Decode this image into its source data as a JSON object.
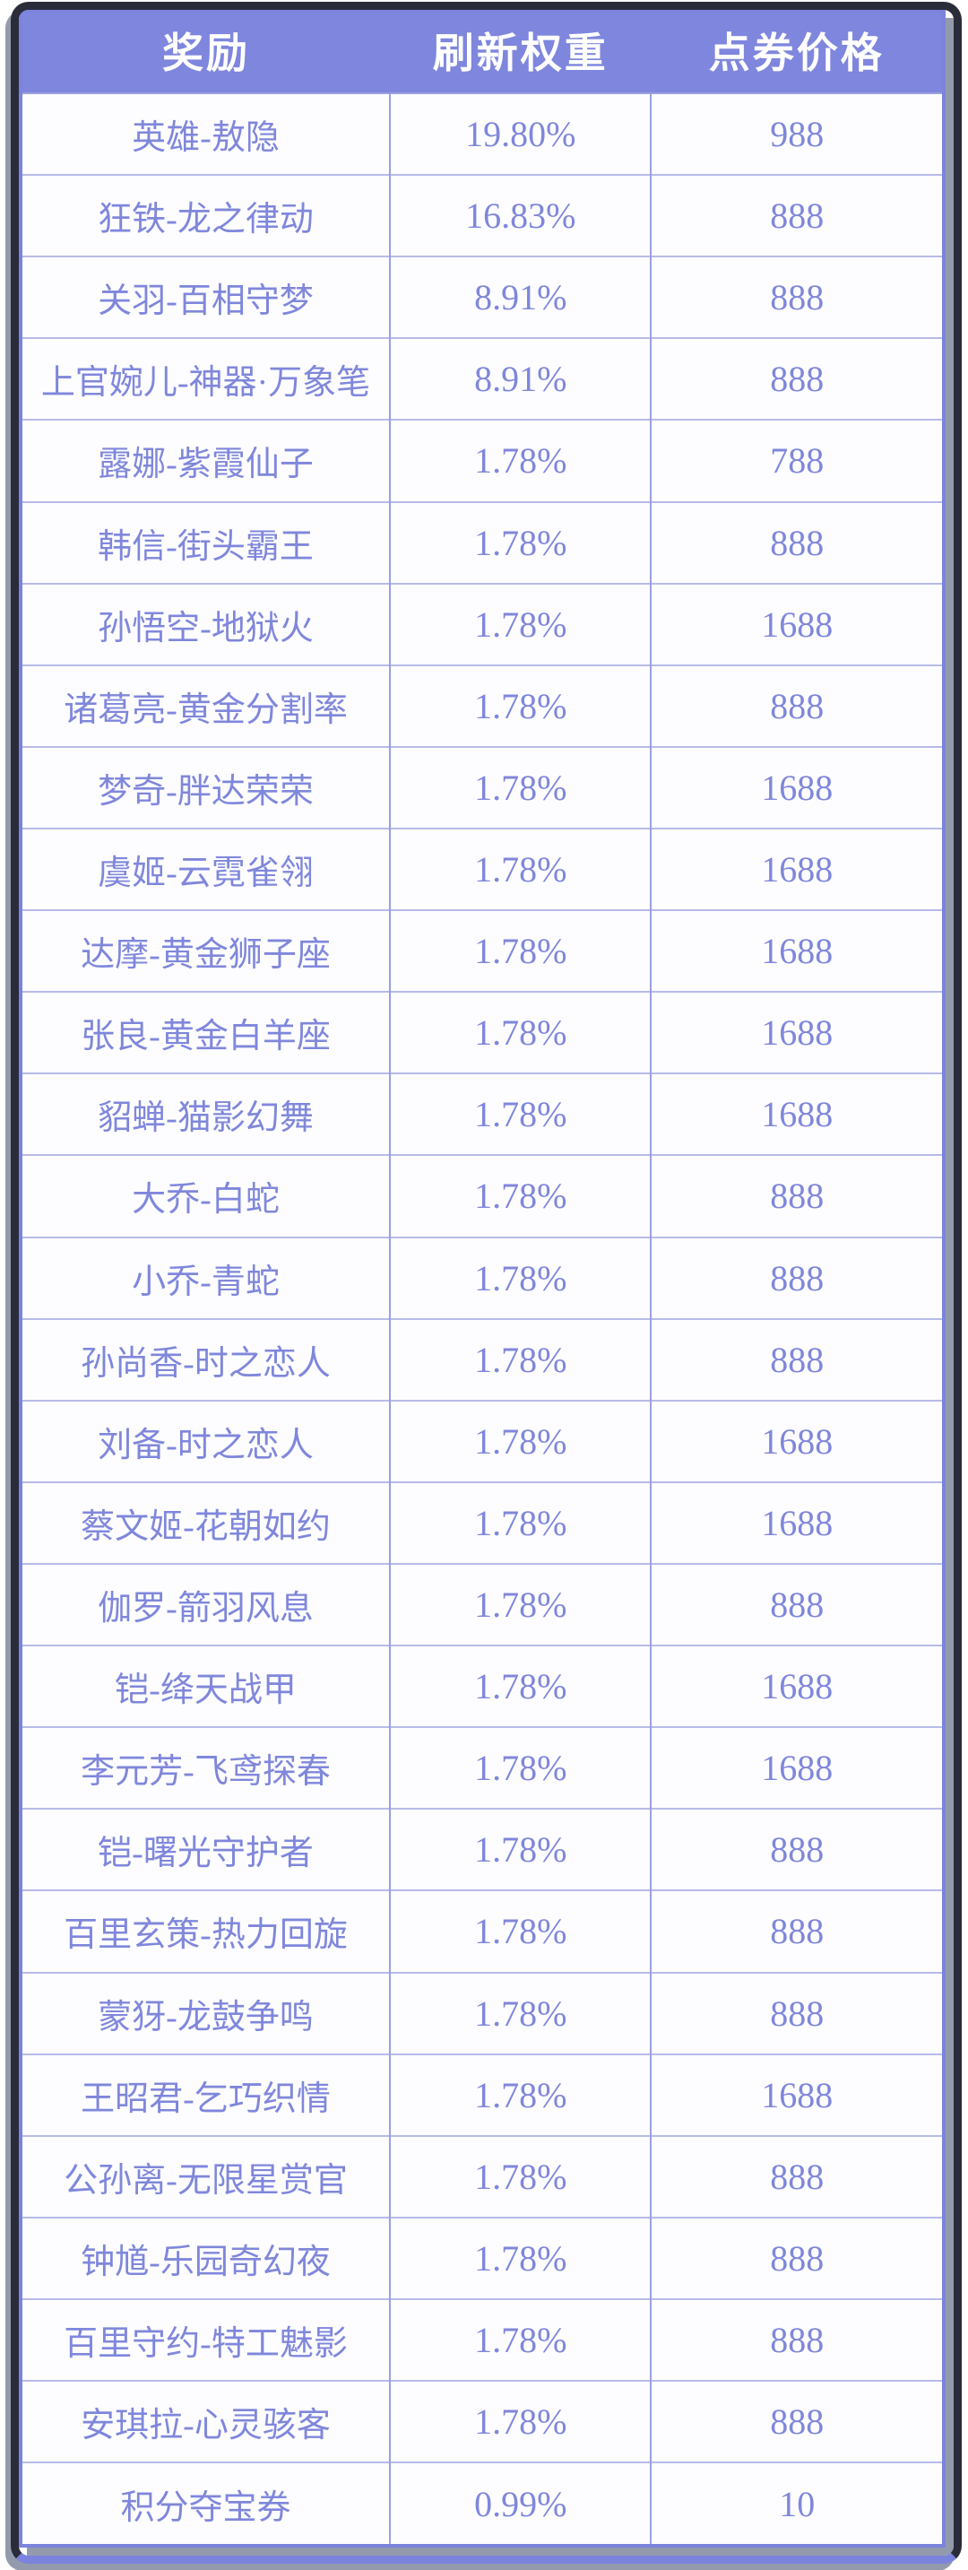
{
  "chart_data": {
    "type": "table",
    "columns": [
      "奖励",
      "刷新权重",
      "点券价格"
    ],
    "rows": [
      [
        "英雄-敖隐",
        "19.80%",
        "988"
      ],
      [
        "狂铁-龙之律动",
        "16.83%",
        "888"
      ],
      [
        "关羽-百相守梦",
        "8.91%",
        "888"
      ],
      [
        "上官婉儿-神器·万象笔",
        "8.91%",
        "888"
      ],
      [
        "露娜-紫霞仙子",
        "1.78%",
        "788"
      ],
      [
        "韩信-街头霸王",
        "1.78%",
        "888"
      ],
      [
        "孙悟空-地狱火",
        "1.78%",
        "1688"
      ],
      [
        "诸葛亮-黄金分割率",
        "1.78%",
        "888"
      ],
      [
        "梦奇-胖达荣荣",
        "1.78%",
        "1688"
      ],
      [
        "虞姬-云霓雀翎",
        "1.78%",
        "1688"
      ],
      [
        "达摩-黄金狮子座",
        "1.78%",
        "1688"
      ],
      [
        "张良-黄金白羊座",
        "1.78%",
        "1688"
      ],
      [
        "貂蝉-猫影幻舞",
        "1.78%",
        "1688"
      ],
      [
        "大乔-白蛇",
        "1.78%",
        "888"
      ],
      [
        "小乔-青蛇",
        "1.78%",
        "888"
      ],
      [
        "孙尚香-时之恋人",
        "1.78%",
        "888"
      ],
      [
        "刘备-时之恋人",
        "1.78%",
        "1688"
      ],
      [
        "蔡文姬-花朝如约",
        "1.78%",
        "1688"
      ],
      [
        "伽罗-箭羽风息",
        "1.78%",
        "888"
      ],
      [
        "铠-绛天战甲",
        "1.78%",
        "1688"
      ],
      [
        "李元芳-飞鸢探春",
        "1.78%",
        "1688"
      ],
      [
        "铠-曙光守护者",
        "1.78%",
        "888"
      ],
      [
        "百里玄策-热力回旋",
        "1.78%",
        "888"
      ],
      [
        "蒙犽-龙鼓争鸣",
        "1.78%",
        "888"
      ],
      [
        "王昭君-乞巧织情",
        "1.78%",
        "1688"
      ],
      [
        "公孙离-无限星赏官",
        "1.78%",
        "888"
      ],
      [
        "钟馗-乐园奇幻夜",
        "1.78%",
        "888"
      ],
      [
        "百里守约-特工魅影",
        "1.78%",
        "888"
      ],
      [
        "安琪拉-心灵骇客",
        "1.78%",
        "888"
      ],
      [
        "积分夺宝券",
        "0.99%",
        "10"
      ]
    ]
  },
  "colors": {
    "background": "#ffffff",
    "header_bg": "#7e86dd",
    "header_text": "#ffffff",
    "cell_text": "#7f87db",
    "row_divider": "#b7bbe8",
    "column_divider": "#9aa0dd",
    "table_border": "#7b83dd",
    "frame_border": "#2a2c3a",
    "shadow_gray": "#939aab"
  }
}
